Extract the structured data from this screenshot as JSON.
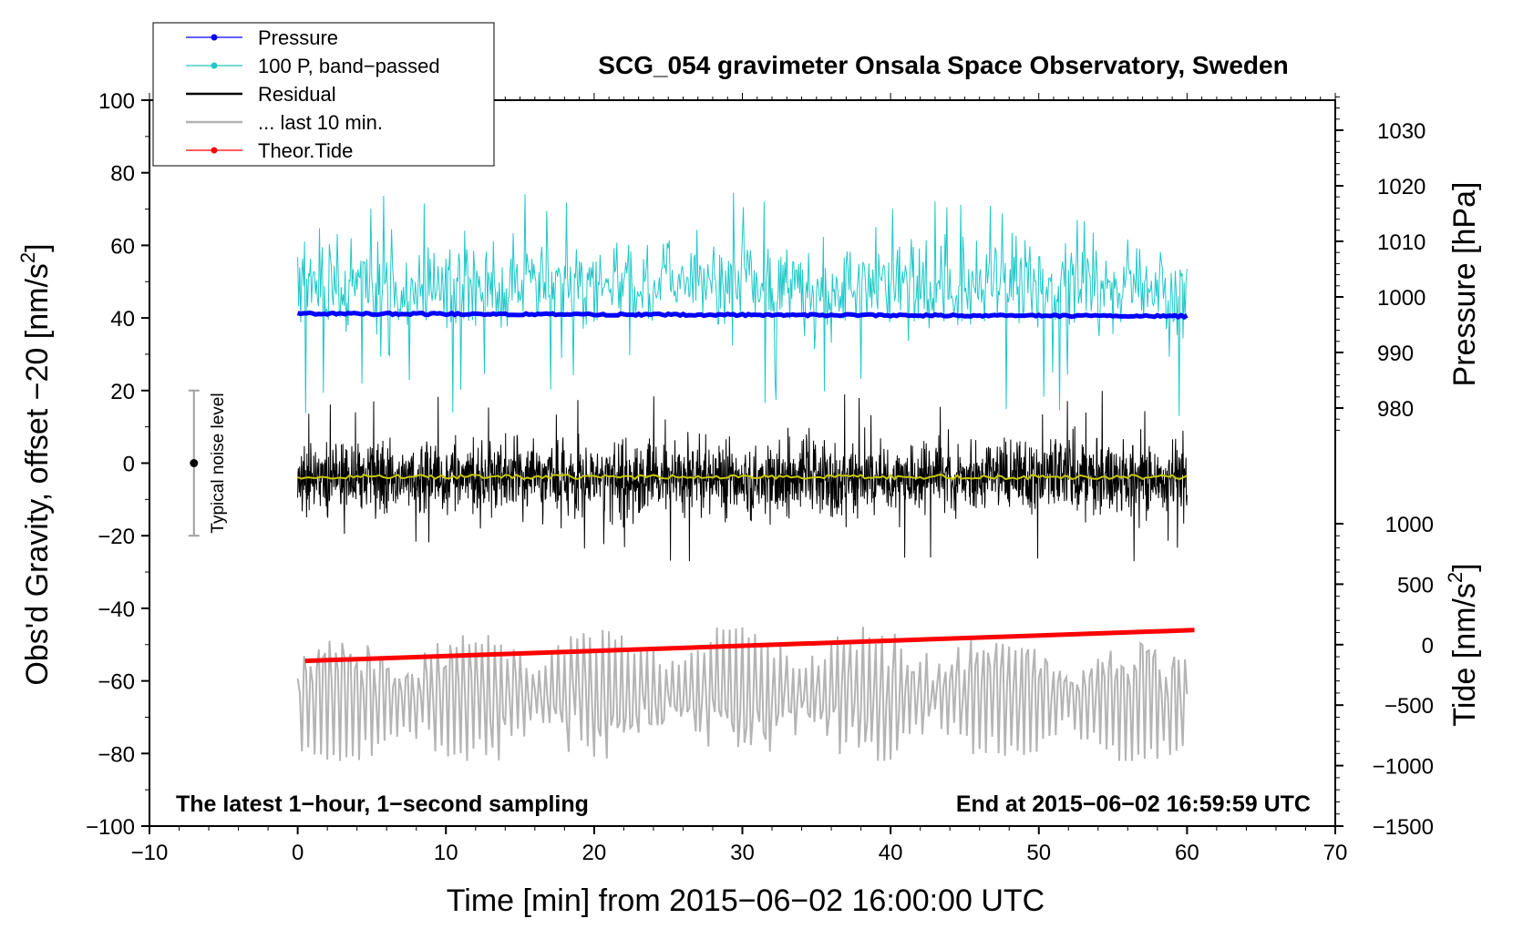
{
  "chart_data": {
    "type": "line",
    "title": "SCG_054 gravimeter Onsala Space Observatory, Sweden",
    "xlabel": "Time [min] from 2015−06−02 16:00:00 UTC",
    "ylabel": "Obs'd Gravity, offset −20 [nm/s",
    "ylabel_sup": "2",
    "ylabel_end": "]",
    "y2_pressure_label": "Pressure [hPa]",
    "y2_tide_label": "Tide [nm/s",
    "y2_tide_sup": "2",
    "y2_tide_end": "]",
    "xlim": [
      -10,
      70
    ],
    "ylim": [
      -100,
      100
    ],
    "x_ticks": [
      -10,
      0,
      10,
      20,
      30,
      40,
      50,
      60,
      70
    ],
    "x_tick_labels": [
      "−10",
      "0",
      "10",
      "20",
      "30",
      "40",
      "50",
      "60",
      "70"
    ],
    "y_ticks": [
      -100,
      -80,
      -60,
      -40,
      -20,
      0,
      20,
      40,
      60,
      80,
      100
    ],
    "y_tick_labels": [
      "−100",
      "−80",
      "−60",
      "−40",
      "−20",
      "0",
      "20",
      "40",
      "60",
      "80",
      "100"
    ],
    "pressure_ticks": [
      980,
      990,
      1000,
      1010,
      1020,
      1030
    ],
    "pressure_tick_labels": [
      "980",
      "990",
      "1000",
      "1010",
      "1020",
      "1030"
    ],
    "tide_ticks": [
      -1500,
      -1000,
      -500,
      0,
      500,
      1000
    ],
    "tide_tick_labels": [
      "−1500",
      "−1000",
      "−500",
      "0",
      "500",
      "1000"
    ],
    "legend": {
      "position": "top-left",
      "entries": [
        {
          "label": "Pressure",
          "color": "#0000ff",
          "marker": true
        },
        {
          "label": "100 P, band−passed",
          "color": "#20c8c8",
          "marker": true
        },
        {
          "label": "Residual",
          "color": "#000000",
          "marker": false
        },
        {
          "label": "... last 10 min.",
          "color": "#b4b4b4",
          "marker": false
        },
        {
          "label": "Theor.Tide",
          "color": "#ff0000",
          "marker": true
        }
      ]
    },
    "annotations": {
      "bottom_left": "The latest 1−hour, 1−second sampling",
      "bottom_right": "End at 2015−06−02 16:59:59 UTC",
      "noise": "Typical noise level"
    },
    "noise_bar": {
      "x": -7,
      "y_center": 0,
      "y_low": -20,
      "y_high": 20
    },
    "series": [
      {
        "name": "Pressure",
        "color": "#0000ff",
        "x_start": 0,
        "x_end": 60,
        "y_start": 41.2,
        "y_end": 40.5
      },
      {
        "name": "100 P, band−passed",
        "color": "#20c8c8",
        "x_start": 0,
        "x_end": 60,
        "y_mean": 49,
        "y_min": 13,
        "y_max": 75
      },
      {
        "name": "Residual",
        "color": "#000000",
        "x_start": 0,
        "x_end": 60,
        "y_mean": -4,
        "y_min": -27,
        "y_max": 21
      },
      {
        "name": "Residual running mean",
        "color": "#c8c800",
        "x_start": 0,
        "x_end": 60,
        "y_mean": -3.8
      },
      {
        "name": "... last 10 min.",
        "color": "#b4b4b4",
        "x_start": 0,
        "x_end": 60,
        "y_mean": -64,
        "y_min": -82,
        "y_max": -42
      },
      {
        "name": "Theor.Tide",
        "color": "#ff0000",
        "x": [
          0.5,
          60.5
        ],
        "y": [
          -54.5,
          -46
        ]
      }
    ]
  },
  "colors": {
    "pressure": "#0000ff",
    "bandpassed": "#20c8c8",
    "residual": "#000000",
    "residual_mean": "#c8c800",
    "last10": "#b4b4b4",
    "tide": "#ff0000",
    "noise_bar": "#a0a0a0"
  }
}
